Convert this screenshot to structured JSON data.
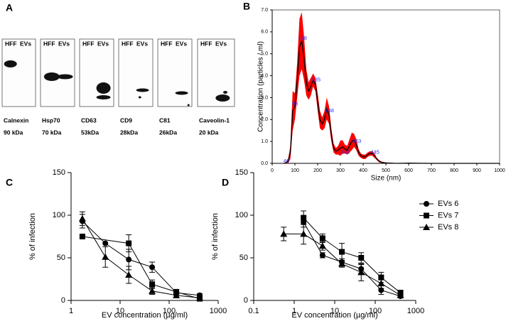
{
  "blot": {
    "label": "A",
    "lanes": [
      "HFF",
      "EVs"
    ],
    "blots": [
      {
        "protein": "Calnexin",
        "weight": "90 kDa"
      },
      {
        "protein": "Hsp70",
        "weight": "70 kDa"
      },
      {
        "protein": "CD63",
        "weight": "53kDa"
      },
      {
        "protein": "CD9",
        "weight": "28kDa"
      },
      {
        "protein": "C81",
        "weight": "26kDa"
      },
      {
        "protein": "Caveolin-1",
        "weight": "20 kDa"
      }
    ]
  },
  "chart_data": [
    {
      "type": "line",
      "label": "B",
      "x_label": "Size (nm)",
      "y_label": "Concentration (particles / ml)",
      "xlim": [
        0,
        1000
      ],
      "xticks": [
        0,
        100,
        200,
        300,
        400,
        500,
        600,
        700,
        800,
        900,
        1000
      ],
      "ylim": [
        0,
        7
      ],
      "yticks": [
        {
          "value": 0,
          "label": "0.0"
        },
        {
          "value": 1,
          "label": "1.0"
        },
        {
          "value": 2,
          "label": "2.0"
        },
        {
          "value": 3,
          "label": "3.0"
        },
        {
          "value": 4,
          "label": "4.0"
        },
        {
          "value": 5,
          "label": "5.0"
        },
        {
          "value": 6,
          "label": "6.0"
        },
        {
          "value": 7,
          "label": "7.0"
        }
      ],
      "band_color": "#ff0000",
      "series": [
        {
          "color": "#000000",
          "x": [
            50,
            60,
            70,
            80,
            90,
            100,
            110,
            120,
            130,
            140,
            150,
            160,
            170,
            180,
            190,
            200,
            210,
            220,
            230,
            240,
            250,
            260,
            270,
            280,
            290,
            300,
            310,
            320,
            330,
            340,
            350,
            360,
            370,
            380,
            390,
            400,
            410,
            420,
            430,
            440,
            450,
            460,
            470,
            480,
            500,
            550,
            600,
            700,
            1000
          ],
          "values": [
            0,
            0.02,
            0.1,
            0.5,
            2.4,
            2.6,
            3.8,
            5.3,
            5.6,
            4.8,
            3.7,
            3.3,
            3.5,
            3.8,
            3.6,
            2.8,
            2.0,
            1.8,
            2.0,
            2.5,
            2.2,
            1.3,
            0.7,
            0.55,
            0.6,
            0.7,
            0.75,
            0.65,
            0.6,
            0.8,
            1.0,
            1.05,
            0.85,
            0.5,
            0.35,
            0.3,
            0.3,
            0.4,
            0.45,
            0.45,
            0.35,
            0.2,
            0.1,
            0.05,
            0.02,
            0,
            0.01,
            0,
            0
          ],
          "errors": [
            0,
            0.02,
            0.1,
            0.3,
            0.9,
            0.6,
            0.8,
            1.3,
            1.3,
            1.0,
            0.6,
            0.4,
            0.4,
            0.3,
            0.3,
            0.4,
            0.4,
            0.3,
            0.4,
            0.5,
            0.4,
            0.3,
            0.2,
            0.15,
            0.2,
            0.35,
            0.3,
            0.2,
            0.2,
            0.3,
            0.4,
            0.3,
            0.25,
            0.15,
            0.1,
            0.1,
            0.1,
            0.1,
            0.1,
            0.1,
            0.1,
            0.05,
            0.05,
            0.03,
            0.02,
            0,
            0.02,
            0,
            0
          ]
        }
      ],
      "annotations": [
        "46",
        "98",
        "128",
        "185",
        "248",
        "343",
        "363",
        "445"
      ]
    },
    {
      "type": "line",
      "label": "C",
      "x_label": "EV concentration (µg/ml)",
      "y_label": "% of infection",
      "log_x": true,
      "xlim": [
        1,
        1000
      ],
      "xticks": [
        1,
        10,
        100,
        1000
      ],
      "ylim": [
        0,
        150
      ],
      "yticks": [
        0,
        50,
        100,
        150
      ],
      "series": [
        {
          "name": "EVs 6",
          "marker": "circle",
          "color": "#000000",
          "x": [
            1.7,
            5,
            15,
            45,
            140,
            420
          ],
          "values": [
            93,
            67,
            48,
            39,
            9,
            6
          ],
          "errors": [
            8,
            0,
            12,
            6,
            3,
            2
          ]
        },
        {
          "name": "EVs 7",
          "marker": "square",
          "color": "#000000",
          "x": [
            1.7,
            15,
            45,
            140,
            420
          ],
          "values": [
            75,
            67,
            19,
            10,
            2
          ],
          "errors": [
            0,
            10,
            5,
            3,
            2
          ]
        },
        {
          "name": "EVs 8",
          "marker": "triangle",
          "color": "#000000",
          "x": [
            1.7,
            5,
            15,
            45,
            140,
            420
          ],
          "values": [
            96,
            51,
            30,
            11,
            6,
            3
          ],
          "errors": [
            8,
            12,
            10,
            4,
            3,
            2
          ]
        }
      ]
    },
    {
      "type": "line",
      "label": "D",
      "x_label": "EV concentration (µg/ml)",
      "y_label": "% of infection",
      "log_x": true,
      "xlim": [
        0.1,
        1000
      ],
      "xticks": [
        0.1,
        1,
        10,
        100,
        1000
      ],
      "ylim": [
        0,
        150
      ],
      "yticks": [
        0,
        50,
        100,
        150
      ],
      "legend": "top-right",
      "series": [
        {
          "name": "EVs 6",
          "marker": "circle",
          "color": "#000000",
          "x": [
            1.7,
            5,
            15,
            45,
            140,
            420
          ],
          "values": [
            92,
            53,
            45,
            37,
            12,
            5
          ],
          "errors": [
            6,
            3,
            4,
            5,
            5,
            2
          ]
        },
        {
          "name": "EVs 7",
          "marker": "square",
          "color": "#000000",
          "x": [
            1.7,
            5,
            15,
            45,
            140,
            420
          ],
          "values": [
            97,
            73,
            57,
            50,
            27,
            9
          ],
          "errors": [
            8,
            5,
            10,
            6,
            6,
            3
          ]
        },
        {
          "name": "EVs 8",
          "marker": "triangle",
          "color": "#000000",
          "x": [
            0.55,
            1.7,
            5,
            15,
            45,
            140,
            420
          ],
          "values": [
            78,
            78,
            64,
            43,
            33,
            20,
            6
          ],
          "errors": [
            8,
            12,
            5,
            4,
            10,
            6,
            3
          ]
        }
      ]
    }
  ]
}
